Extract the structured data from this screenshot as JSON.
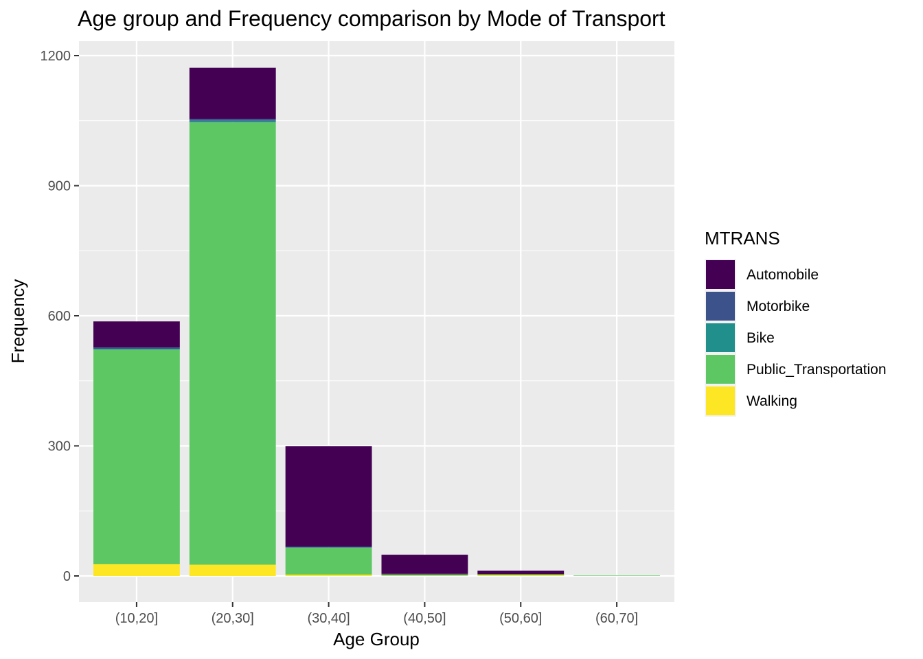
{
  "chart_data": {
    "type": "bar",
    "stacked": true,
    "title": "Age group and Frequency comparison by Mode of Transport",
    "xlabel": "Age Group",
    "ylabel": "Frequency",
    "categories": [
      "(10,20]",
      "(20,30]",
      "(30,40]",
      "(40,50]",
      "(50,60]",
      "(60,70]"
    ],
    "ylim": [
      -57,
      1220
    ],
    "yticks": [
      0,
      300,
      600,
      900,
      1200
    ],
    "grid": true,
    "legend": {
      "title": "MTRANS",
      "position": "right"
    },
    "series": [
      {
        "name": "Automobile",
        "color": "#440154",
        "values": [
          60,
          118,
          232,
          44,
          8,
          0
        ]
      },
      {
        "name": "Motorbike",
        "color": "#3B528B",
        "values": [
          3,
          4,
          1,
          2,
          0,
          0
        ]
      },
      {
        "name": "Bike",
        "color": "#21908C",
        "values": [
          2,
          4,
          1,
          0,
          0,
          0
        ]
      },
      {
        "name": "Public_Transportation",
        "color": "#5DC863",
        "values": [
          495,
          1020,
          62,
          2,
          2,
          1
        ]
      },
      {
        "name": "Walking",
        "color": "#FDE725",
        "values": [
          27,
          26,
          3,
          1,
          2,
          0
        ]
      }
    ]
  }
}
